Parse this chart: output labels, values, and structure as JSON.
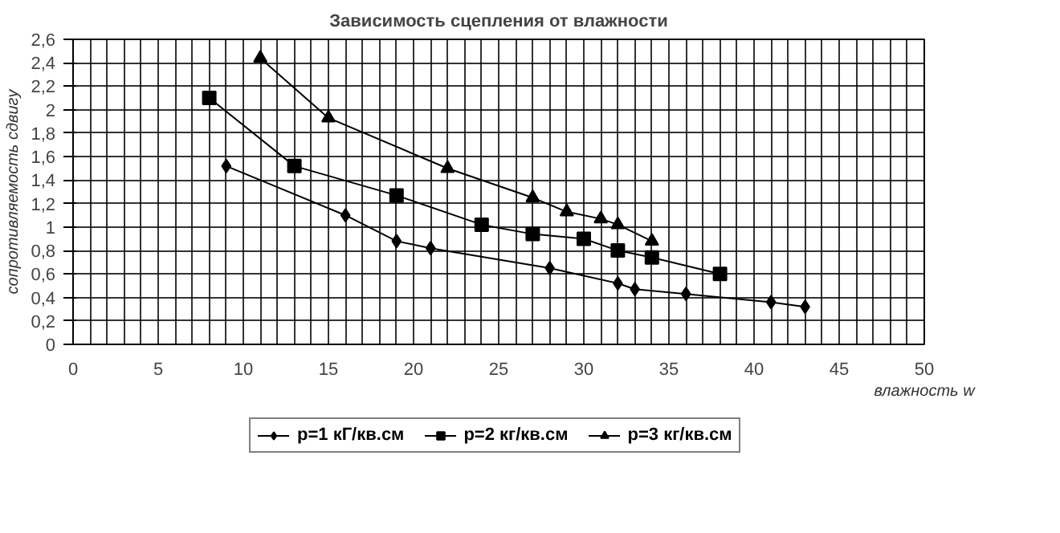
{
  "chart_data": {
    "type": "line",
    "title": "Зависимость сцепления от влажности",
    "xlabel": "влажность w",
    "ylabel": "сопротивляемость сдвигу",
    "xlim": [
      0,
      50
    ],
    "ylim": [
      0,
      2.6
    ],
    "xticks": [
      0,
      {
        "value": 1,
        "label": null
      },
      {
        "value": 2,
        "label": null
      },
      {
        "value": 3,
        "label": null
      },
      {
        "value": 4,
        "label": null
      },
      5,
      {
        "value": 6,
        "label": null
      },
      {
        "value": 7,
        "label": null
      },
      {
        "value": 8,
        "label": null
      },
      {
        "value": 9,
        "label": null
      },
      10,
      {
        "value": 11,
        "label": null
      },
      {
        "value": 12,
        "label": null
      },
      {
        "value": 13,
        "label": null
      },
      {
        "value": 14,
        "label": null
      },
      15,
      {
        "value": 16,
        "label": null
      },
      {
        "value": 17,
        "label": null
      },
      {
        "value": 18,
        "label": null
      },
      {
        "value": 19,
        "label": null
      },
      20,
      {
        "value": 21,
        "label": null
      },
      {
        "value": 22,
        "label": null
      },
      {
        "value": 23,
        "label": null
      },
      {
        "value": 24,
        "label": null
      },
      25,
      {
        "value": 26,
        "label": null
      },
      {
        "value": 27,
        "label": null
      },
      {
        "value": 28,
        "label": null
      },
      {
        "value": 29,
        "label": null
      },
      30,
      {
        "value": 31,
        "label": null
      },
      {
        "value": 32,
        "label": null
      },
      {
        "value": 33,
        "label": null
      },
      {
        "value": 34,
        "label": null
      },
      35,
      {
        "value": 36,
        "label": null
      },
      {
        "value": 37,
        "label": null
      },
      {
        "value": 38,
        "label": null
      },
      {
        "value": 39,
        "label": null
      },
      40,
      {
        "value": 41,
        "label": null
      },
      {
        "value": 42,
        "label": null
      },
      {
        "value": 43,
        "label": null
      },
      {
        "value": 44,
        "label": null
      },
      45,
      {
        "value": 46,
        "label": null
      },
      {
        "value": 47,
        "label": null
      },
      {
        "value": 48,
        "label": null
      },
      {
        "value": 49,
        "label": null
      },
      50
    ],
    "yticks": [
      0,
      {
        "value": 0.2,
        "label": "0,2"
      },
      {
        "value": 0.4,
        "label": "0,4"
      },
      {
        "value": 0.6,
        "label": "0,6"
      },
      {
        "value": 0.8,
        "label": "0,8"
      },
      1,
      {
        "value": 1.2,
        "label": "1,2"
      },
      {
        "value": 1.4,
        "label": "1,4"
      },
      {
        "value": 1.6,
        "label": "1,6"
      },
      {
        "value": 1.8,
        "label": "1,8"
      },
      2,
      {
        "value": 2.2,
        "label": "2,2"
      },
      {
        "value": 2.4,
        "label": "2,4"
      },
      {
        "value": 2.6,
        "label": "2,6"
      }
    ],
    "grid": true,
    "legend": "bottom",
    "line_style": "solid",
    "series": [
      {
        "name": "p=1 кГ/кв.см",
        "color": "#000000",
        "marker": "diamond",
        "x": [
          9,
          16,
          19,
          21,
          28,
          32,
          33,
          36,
          41,
          43
        ],
        "values": [
          1.52,
          1.1,
          0.88,
          0.82,
          0.65,
          0.52,
          0.47,
          0.43,
          0.36,
          0.32
        ]
      },
      {
        "name": "p=2 кг/кв.см",
        "color": "#000000",
        "marker": "square",
        "x": [
          8,
          13,
          19,
          24,
          27,
          30,
          32,
          34,
          38
        ],
        "values": [
          2.1,
          1.52,
          1.27,
          1.02,
          0.94,
          0.9,
          0.8,
          0.74,
          0.6
        ]
      },
      {
        "name": "p=3 кг/кв.см",
        "color": "#000000",
        "marker": "triangle",
        "x": [
          11,
          15,
          22,
          27,
          29,
          31,
          32,
          34
        ],
        "values": [
          2.44,
          1.93,
          1.5,
          1.25,
          1.13,
          1.07,
          1.02,
          0.88
        ]
      }
    ]
  }
}
